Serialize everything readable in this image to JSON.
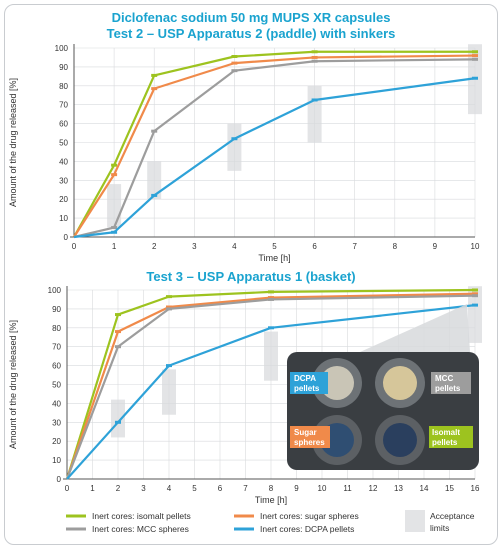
{
  "legend": {
    "items": [
      {
        "series": "isomalt",
        "label": "Inert cores: isomalt pellets",
        "color": "#9dc31f"
      },
      {
        "series": "sugar",
        "label": "Inert cores: sugar spheres",
        "color": "#f08a4a"
      },
      {
        "series": "mcc",
        "label": "Inert cores: MCC spheres",
        "color": "#9d9d9d"
      },
      {
        "series": "dcpa",
        "label": "Inert cores: DCPA pellets",
        "color": "#2ea2d8"
      }
    ],
    "acceptance_label_1": "Acceptance",
    "acceptance_label_2": "limits",
    "acceptance_color": "#e3e4e6"
  },
  "inset": {
    "dcpa_1": "DCPA",
    "dcpa_2": "pellets",
    "mcc_1": "MCC",
    "mcc_2": "pellets",
    "sugar_1": "Sugar",
    "sugar_2": "spheres",
    "isomalt_1": "Isomalt",
    "isomalt_2": "pellets"
  },
  "chart_data": [
    {
      "type": "line",
      "title": "Diclofenac sodium 50 mg MUPS XR capsules",
      "subtitle": "Test 2 – USP Apparatus 2 (paddle) with sinkers",
      "xlabel": "Time [h]",
      "ylabel": "Amount of the drug released [%]",
      "xlim": [
        0,
        10
      ],
      "ylim": [
        0,
        100
      ],
      "xticks": [
        0,
        1,
        2,
        3,
        4,
        5,
        6,
        7,
        8,
        9,
        10
      ],
      "yticks": [
        0,
        10,
        20,
        30,
        40,
        50,
        60,
        70,
        80,
        90,
        100
      ],
      "grid": true,
      "x": [
        0,
        1,
        2,
        4,
        6,
        10
      ],
      "series": [
        {
          "key": "isomalt",
          "color": "#9dc31f",
          "values": [
            0,
            38,
            85.5,
            95.5,
            98,
            98
          ]
        },
        {
          "key": "sugar",
          "color": "#f08a4a",
          "values": [
            0,
            33,
            78.5,
            92,
            95,
            96
          ]
        },
        {
          "key": "mcc",
          "color": "#9d9d9d",
          "values": [
            0,
            5,
            56,
            88,
            93,
            94
          ]
        },
        {
          "key": "dcpa",
          "color": "#2ea2d8",
          "values": [
            0,
            2.5,
            22,
            52,
            72.5,
            84
          ]
        }
      ],
      "acceptance_limits": [
        {
          "x": 1,
          "low": 5,
          "high": 28
        },
        {
          "x": 2,
          "low": 20,
          "high": 40
        },
        {
          "x": 4,
          "low": 35,
          "high": 60
        },
        {
          "x": 6,
          "low": 50,
          "high": 80
        },
        {
          "x": 10,
          "low": 65,
          "high": 102
        }
      ]
    },
    {
      "type": "line",
      "title": "Test 3 – USP Apparatus 1 (basket)",
      "xlabel": "Time [h]",
      "ylabel": "Amount of the drug released [%]",
      "xlim": [
        0,
        16
      ],
      "ylim": [
        0,
        100
      ],
      "xticks": [
        0,
        1,
        2,
        3,
        4,
        5,
        6,
        7,
        8,
        9,
        10,
        11,
        12,
        13,
        14,
        15,
        16
      ],
      "yticks": [
        0,
        10,
        20,
        30,
        40,
        50,
        60,
        70,
        80,
        90,
        100
      ],
      "grid": true,
      "x": [
        0,
        2,
        4,
        8,
        16
      ],
      "series": [
        {
          "key": "isomalt",
          "color": "#9dc31f",
          "values": [
            0,
            87,
            96.5,
            99,
            100
          ]
        },
        {
          "key": "sugar",
          "color": "#f08a4a",
          "values": [
            0,
            78,
            91,
            96,
            98
          ]
        },
        {
          "key": "mcc",
          "color": "#9d9d9d",
          "values": [
            0,
            70,
            90,
            95,
            97
          ]
        },
        {
          "key": "dcpa",
          "color": "#2ea2d8",
          "values": [
            0,
            30,
            60,
            80,
            92
          ]
        }
      ],
      "acceptance_limits": [
        {
          "x": 2,
          "low": 22,
          "high": 42
        },
        {
          "x": 4,
          "low": 34,
          "high": 58
        },
        {
          "x": 8,
          "low": 52,
          "high": 78
        },
        {
          "x": 16,
          "low": 72,
          "high": 102
        }
      ]
    }
  ]
}
